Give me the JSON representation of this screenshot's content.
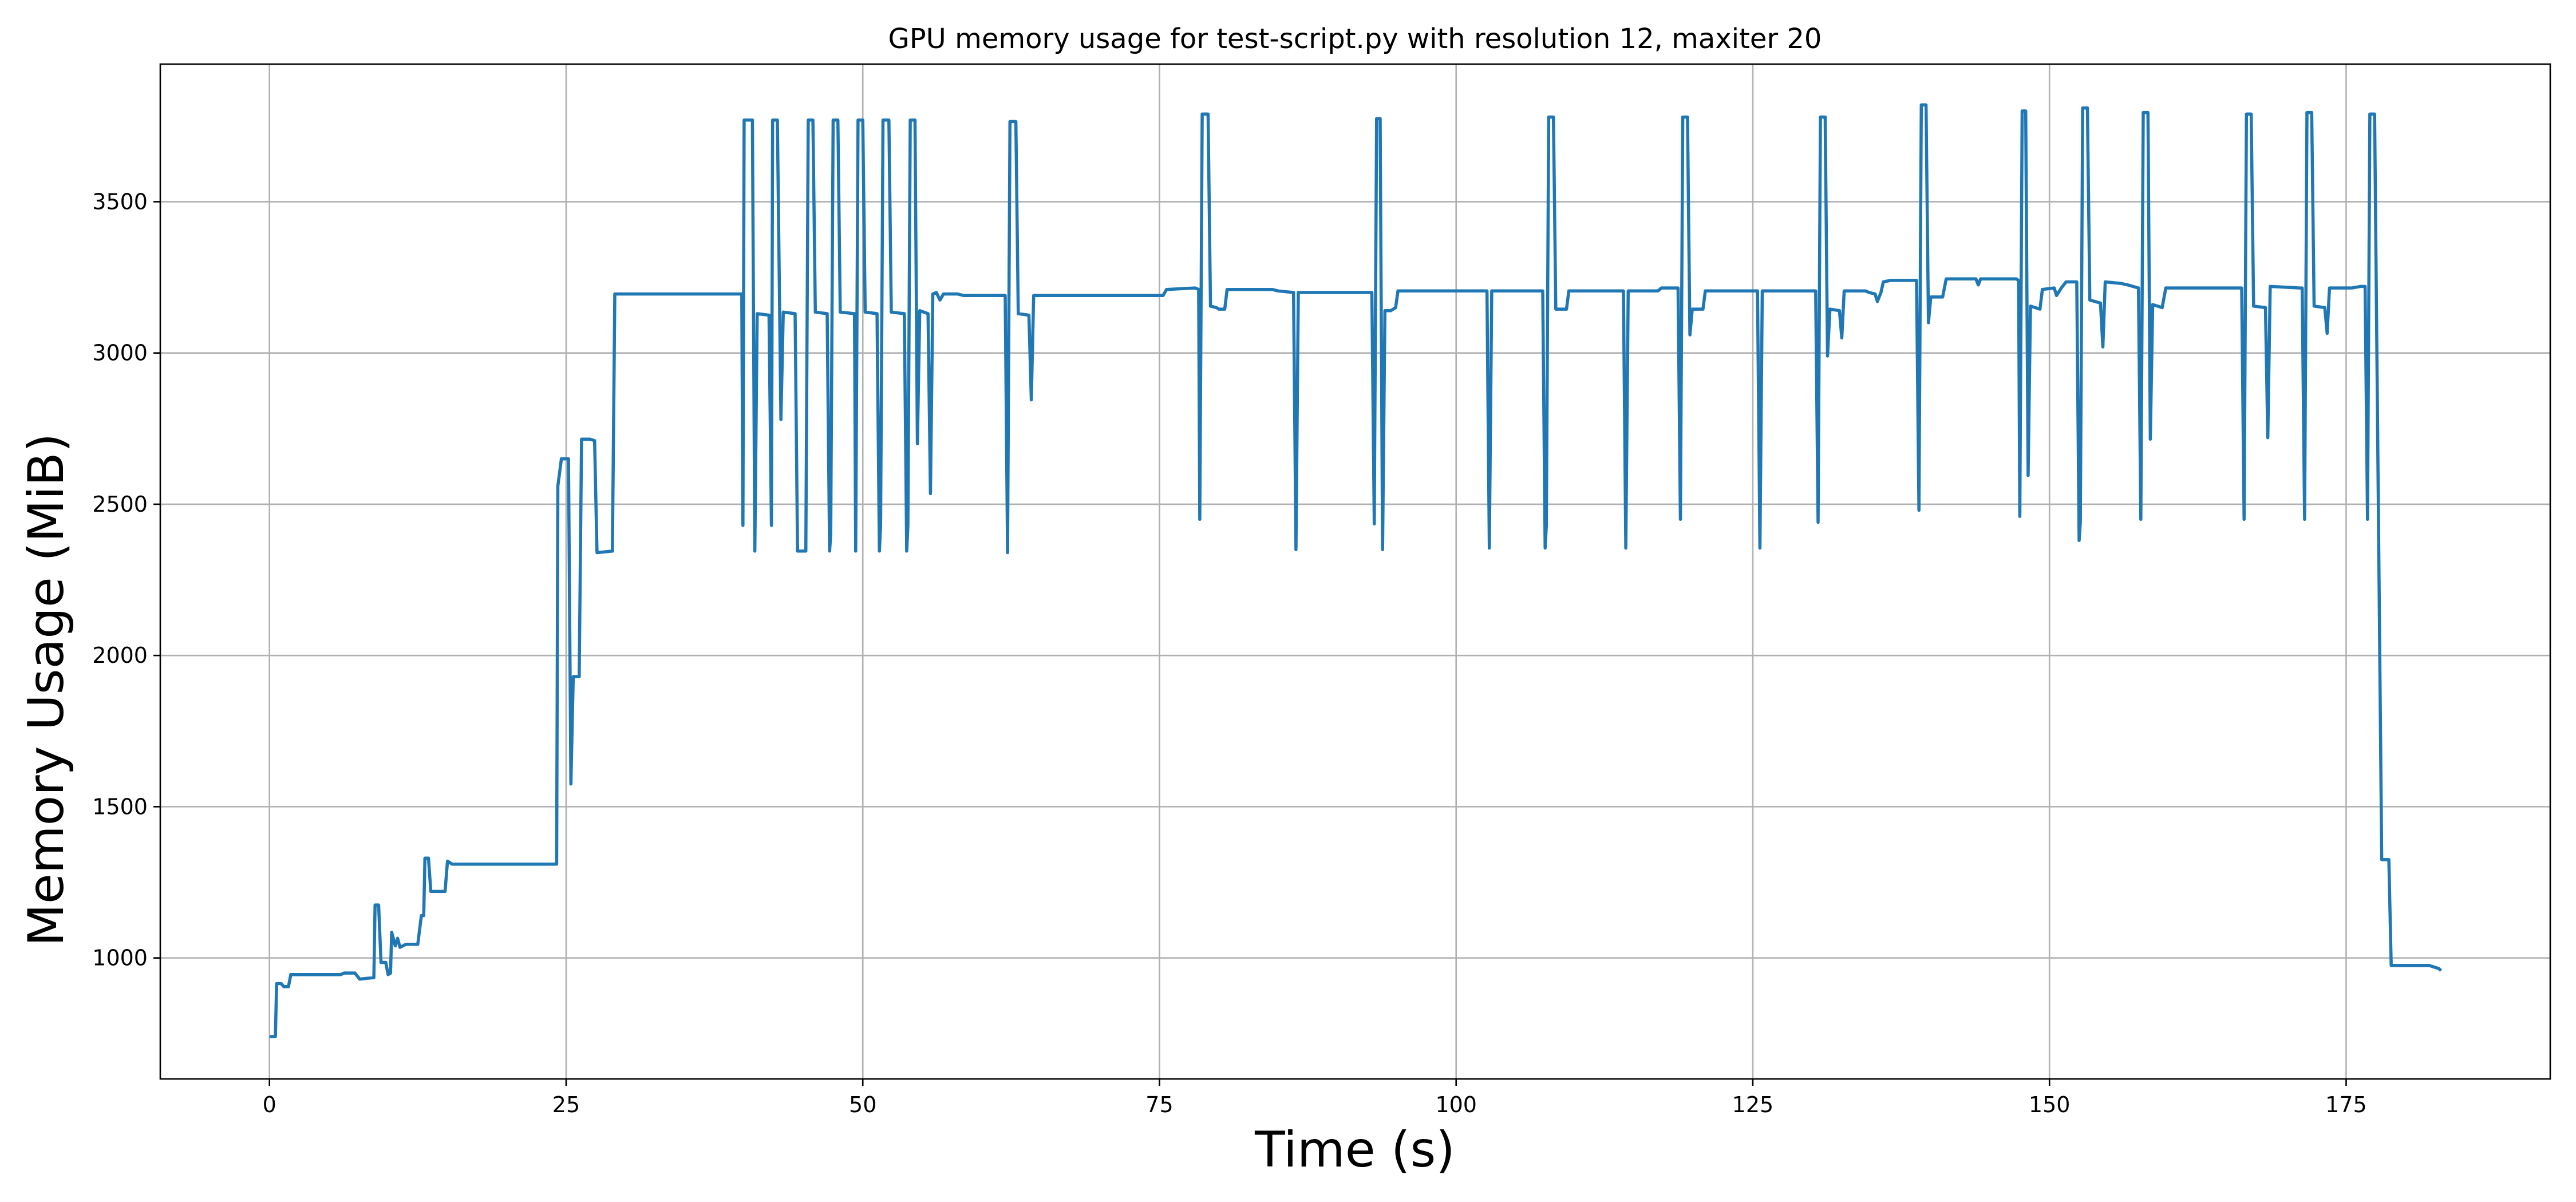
{
  "chart_data": {
    "type": "line",
    "title": "GPU memory usage for test-script.py with resolution 12, maxiter 20",
    "xlabel": "Time (s)",
    "ylabel": "Memory Usage (MiB)",
    "xlim": [
      -9.2,
      192.2
    ],
    "ylim": [
      600,
      3955
    ],
    "xticks": [
      0,
      25,
      50,
      75,
      100,
      125,
      150,
      175
    ],
    "yticks": [
      1000,
      1500,
      2000,
      2500,
      3000,
      3500
    ],
    "grid": true,
    "line_color": "#1f77b4",
    "series": [
      {
        "values": [
          [
            0,
            740
          ],
          [
            0.5,
            740
          ],
          [
            0.6,
            915
          ],
          [
            1.0,
            915
          ],
          [
            1.2,
            905
          ],
          [
            1.6,
            905
          ],
          [
            1.8,
            945
          ],
          [
            6.0,
            945
          ],
          [
            6.3,
            950
          ],
          [
            7.2,
            950
          ],
          [
            7.6,
            930
          ],
          [
            8.8,
            935
          ],
          [
            8.9,
            1175
          ],
          [
            9.2,
            1175
          ],
          [
            9.4,
            985
          ],
          [
            9.8,
            985
          ],
          [
            10.0,
            945
          ],
          [
            10.2,
            950
          ],
          [
            10.3,
            1085
          ],
          [
            10.6,
            1040
          ],
          [
            10.8,
            1065
          ],
          [
            11.0,
            1035
          ],
          [
            11.5,
            1045
          ],
          [
            12.5,
            1045
          ],
          [
            12.8,
            1140
          ],
          [
            13.0,
            1140
          ],
          [
            13.1,
            1330
          ],
          [
            13.4,
            1330
          ],
          [
            13.6,
            1220
          ],
          [
            14.8,
            1220
          ],
          [
            15.0,
            1320
          ],
          [
            15.4,
            1310
          ],
          [
            24.2,
            1310
          ],
          [
            24.3,
            2560
          ],
          [
            24.6,
            2650
          ],
          [
            25.2,
            2650
          ],
          [
            25.4,
            1575
          ],
          [
            25.6,
            1930
          ],
          [
            26.1,
            1930
          ],
          [
            26.3,
            2715
          ],
          [
            27.0,
            2715
          ],
          [
            27.4,
            2710
          ],
          [
            27.6,
            2340
          ],
          [
            28.9,
            2345
          ],
          [
            29.1,
            3195
          ],
          [
            39.8,
            3195
          ],
          [
            39.9,
            2430
          ],
          [
            40.0,
            3770
          ],
          [
            40.7,
            3770
          ],
          [
            40.9,
            2345
          ],
          [
            41.1,
            3130
          ],
          [
            42.1,
            3125
          ],
          [
            42.3,
            2430
          ],
          [
            42.4,
            3770
          ],
          [
            42.8,
            3770
          ],
          [
            43.1,
            2780
          ],
          [
            43.3,
            3135
          ],
          [
            44.3,
            3130
          ],
          [
            44.5,
            2345
          ],
          [
            45.2,
            2345
          ],
          [
            45.4,
            3770
          ],
          [
            45.8,
            3770
          ],
          [
            46.0,
            3135
          ],
          [
            47.0,
            3130
          ],
          [
            47.2,
            2345
          ],
          [
            47.3,
            2400
          ],
          [
            47.5,
            3770
          ],
          [
            47.9,
            3770
          ],
          [
            48.1,
            3135
          ],
          [
            49.3,
            3130
          ],
          [
            49.4,
            2345
          ],
          [
            49.6,
            3770
          ],
          [
            50.0,
            3770
          ],
          [
            50.2,
            3135
          ],
          [
            51.2,
            3130
          ],
          [
            51.4,
            2345
          ],
          [
            51.5,
            2430
          ],
          [
            51.7,
            3770
          ],
          [
            52.2,
            3770
          ],
          [
            52.4,
            3135
          ],
          [
            53.5,
            3130
          ],
          [
            53.7,
            2345
          ],
          [
            53.8,
            2430
          ],
          [
            54.0,
            3770
          ],
          [
            54.4,
            3770
          ],
          [
            54.6,
            2700
          ],
          [
            54.8,
            3140
          ],
          [
            55.5,
            3130
          ],
          [
            55.7,
            2535
          ],
          [
            55.9,
            3195
          ],
          [
            56.2,
            3200
          ],
          [
            56.5,
            3175
          ],
          [
            56.8,
            3195
          ],
          [
            58.0,
            3195
          ],
          [
            58.5,
            3190
          ],
          [
            62.0,
            3190
          ],
          [
            62.2,
            2340
          ],
          [
            62.4,
            3765
          ],
          [
            62.9,
            3765
          ],
          [
            63.1,
            3130
          ],
          [
            64.0,
            3125
          ],
          [
            64.2,
            2845
          ],
          [
            64.4,
            3190
          ],
          [
            75.3,
            3190
          ],
          [
            75.6,
            3210
          ],
          [
            78.0,
            3215
          ],
          [
            78.3,
            3210
          ],
          [
            78.4,
            2450
          ],
          [
            78.6,
            3790
          ],
          [
            79.1,
            3790
          ],
          [
            79.3,
            3155
          ],
          [
            79.8,
            3150
          ],
          [
            80.0,
            3145
          ],
          [
            80.5,
            3145
          ],
          [
            80.7,
            3210
          ],
          [
            84.5,
            3210
          ],
          [
            85.0,
            3205
          ],
          [
            86.3,
            3200
          ],
          [
            86.5,
            2350
          ],
          [
            86.7,
            3200
          ],
          [
            92.9,
            3200
          ],
          [
            93.1,
            2435
          ],
          [
            93.3,
            3775
          ],
          [
            93.6,
            3775
          ],
          [
            93.8,
            2350
          ],
          [
            94.0,
            3140
          ],
          [
            94.5,
            3140
          ],
          [
            94.9,
            3150
          ],
          [
            95.1,
            3205
          ],
          [
            102.6,
            3205
          ],
          [
            102.8,
            2355
          ],
          [
            103.0,
            3205
          ],
          [
            107.3,
            3205
          ],
          [
            107.5,
            2355
          ],
          [
            107.6,
            2430
          ],
          [
            107.8,
            3780
          ],
          [
            108.2,
            3780
          ],
          [
            108.4,
            3145
          ],
          [
            109.3,
            3145
          ],
          [
            109.5,
            3205
          ],
          [
            114.1,
            3205
          ],
          [
            114.3,
            2355
          ],
          [
            114.5,
            3205
          ],
          [
            117.0,
            3205
          ],
          [
            117.3,
            3215
          ],
          [
            118.7,
            3215
          ],
          [
            118.9,
            2450
          ],
          [
            119.1,
            3780
          ],
          [
            119.5,
            3780
          ],
          [
            119.7,
            3060
          ],
          [
            119.9,
            3145
          ],
          [
            120.8,
            3145
          ],
          [
            121.0,
            3205
          ],
          [
            125.4,
            3205
          ],
          [
            125.6,
            2355
          ],
          [
            125.8,
            3205
          ],
          [
            130.3,
            3205
          ],
          [
            130.5,
            2440
          ],
          [
            130.7,
            3780
          ],
          [
            131.1,
            3780
          ],
          [
            131.3,
            2990
          ],
          [
            131.5,
            3145
          ],
          [
            132.3,
            3140
          ],
          [
            132.5,
            3050
          ],
          [
            132.7,
            3205
          ],
          [
            134.5,
            3205
          ],
          [
            134.8,
            3200
          ],
          [
            135.3,
            3195
          ],
          [
            135.5,
            3170
          ],
          [
            135.8,
            3200
          ],
          [
            136.0,
            3235
          ],
          [
            136.6,
            3240
          ],
          [
            138.8,
            3240
          ],
          [
            139.0,
            2480
          ],
          [
            139.2,
            3820
          ],
          [
            139.6,
            3820
          ],
          [
            139.8,
            3100
          ],
          [
            140.0,
            3185
          ],
          [
            141.0,
            3185
          ],
          [
            141.3,
            3245
          ],
          [
            143.8,
            3245
          ],
          [
            144.0,
            3225
          ],
          [
            144.2,
            3245
          ],
          [
            147.2,
            3245
          ],
          [
            147.4,
            3240
          ],
          [
            147.5,
            2460
          ],
          [
            147.7,
            3800
          ],
          [
            148.0,
            3800
          ],
          [
            148.2,
            2595
          ],
          [
            148.4,
            3155
          ],
          [
            149.2,
            3145
          ],
          [
            149.4,
            3210
          ],
          [
            150.4,
            3215
          ],
          [
            150.6,
            3190
          ],
          [
            151.0,
            3215
          ],
          [
            151.4,
            3235
          ],
          [
            152.3,
            3235
          ],
          [
            152.5,
            2380
          ],
          [
            152.6,
            2440
          ],
          [
            152.8,
            3810
          ],
          [
            153.2,
            3810
          ],
          [
            153.4,
            3175
          ],
          [
            154.3,
            3165
          ],
          [
            154.5,
            3020
          ],
          [
            154.7,
            3235
          ],
          [
            156.0,
            3230
          ],
          [
            156.6,
            3225
          ],
          [
            157.5,
            3215
          ],
          [
            157.7,
            2450
          ],
          [
            157.9,
            3795
          ],
          [
            158.3,
            3795
          ],
          [
            158.5,
            2715
          ],
          [
            158.7,
            3160
          ],
          [
            159.5,
            3150
          ],
          [
            159.8,
            3215
          ],
          [
            166.2,
            3215
          ],
          [
            166.4,
            2450
          ],
          [
            166.6,
            3790
          ],
          [
            167.0,
            3790
          ],
          [
            167.2,
            3155
          ],
          [
            168.2,
            3150
          ],
          [
            168.4,
            2720
          ],
          [
            168.6,
            3220
          ],
          [
            171.1,
            3215
          ],
          [
            171.3,
            3215
          ],
          [
            171.5,
            2450
          ],
          [
            171.7,
            3795
          ],
          [
            172.1,
            3795
          ],
          [
            172.3,
            3155
          ],
          [
            173.2,
            3150
          ],
          [
            173.4,
            3065
          ],
          [
            173.6,
            3215
          ],
          [
            175.5,
            3215
          ],
          [
            176.2,
            3220
          ],
          [
            176.6,
            3220
          ],
          [
            176.8,
            2450
          ],
          [
            177.0,
            3790
          ],
          [
            177.4,
            3790
          ],
          [
            178.0,
            1325
          ],
          [
            178.6,
            1325
          ],
          [
            178.8,
            975
          ],
          [
            182.0,
            975
          ],
          [
            182.8,
            965
          ],
          [
            183.0,
            958
          ]
        ]
      }
    ]
  }
}
